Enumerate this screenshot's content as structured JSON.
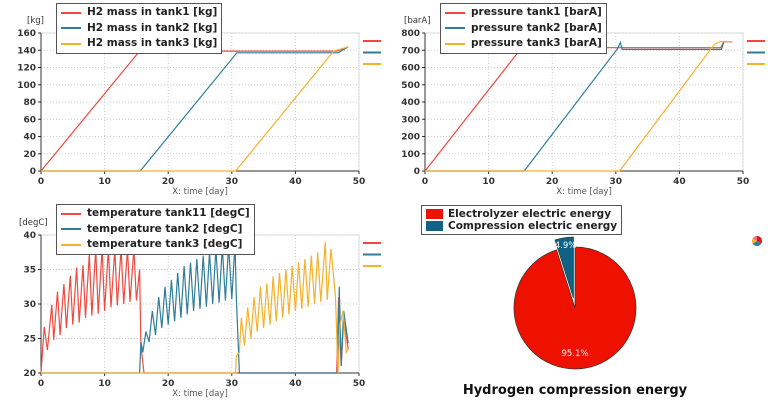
{
  "colors": {
    "tank1": "#ee4a40",
    "tank2": "#2f7d9a",
    "tank3": "#f7b12a",
    "pie_electrolyzer": "#ee1100",
    "pie_compression": "#0f6283"
  },
  "chart_data": [
    {
      "type": "line",
      "xlabel": "X: time [day]",
      "ylabel": "[kg]",
      "xlim": [
        0,
        50
      ],
      "ylim": [
        0,
        160
      ],
      "xticks": [
        0,
        10,
        20,
        30,
        40,
        50
      ],
      "yticks": [
        0,
        20,
        40,
        60,
        80,
        100,
        120,
        140,
        160
      ],
      "grid": true,
      "legend": "top-left",
      "series": [
        {
          "name": "H2 mass in tank1 [kg]",
          "color": "tank1",
          "points": [
            [
              0,
              0
            ],
            [
              15.5,
              139
            ],
            [
              46.5,
              139
            ],
            [
              48.3,
              144
            ]
          ]
        },
        {
          "name": "H2 mass in tank2 [kg]",
          "color": "tank2",
          "points": [
            [
              0,
              0
            ],
            [
              15.6,
              0
            ],
            [
              30.8,
              137
            ],
            [
              46.7,
              137
            ],
            [
              48.3,
              144
            ]
          ]
        },
        {
          "name": "H2 mass in tank3 [kg]",
          "color": "tank3",
          "points": [
            [
              0,
              0
            ],
            [
              30.6,
              0
            ],
            [
              46,
              139
            ],
            [
              48.3,
              144
            ]
          ]
        }
      ]
    },
    {
      "type": "line",
      "xlabel": "X: time [day]",
      "ylabel": "[barA]",
      "xlim": [
        0,
        50
      ],
      "ylim": [
        0,
        800
      ],
      "xticks": [
        0,
        10,
        20,
        30,
        40,
        50
      ],
      "yticks": [
        0,
        100,
        200,
        300,
        400,
        500,
        600,
        700,
        800
      ],
      "grid": true,
      "legend": "top-left",
      "series": [
        {
          "name": "pressure tank1 [barA]",
          "color": "tank1",
          "points": [
            [
              0,
              0
            ],
            [
              15.2,
              715
            ],
            [
              46.5,
              715
            ],
            [
              47,
              750
            ],
            [
              48.3,
              750
            ]
          ]
        },
        {
          "name": "pressure tank2 [barA]",
          "color": "tank2",
          "points": [
            [
              0,
              0
            ],
            [
              15.6,
              0
            ],
            [
              30.3,
              710
            ],
            [
              30.7,
              745
            ],
            [
              31,
              705
            ],
            [
              46.6,
              705
            ],
            [
              47,
              750
            ],
            [
              48.3,
              750
            ]
          ]
        },
        {
          "name": "pressure tank3 [barA]",
          "color": "tank3",
          "points": [
            [
              0,
              0
            ],
            [
              30.6,
              0
            ],
            [
              45.5,
              735
            ],
            [
              46.5,
              750
            ],
            [
              48.3,
              750
            ]
          ]
        }
      ]
    },
    {
      "type": "line",
      "xlabel": "X: time [day]",
      "ylabel": "[degC]",
      "xlim": [
        0,
        50
      ],
      "ylim": [
        20,
        40
      ],
      "xticks": [
        0,
        10,
        20,
        30,
        40,
        50
      ],
      "yticks": [
        20,
        25,
        30,
        35,
        40
      ],
      "grid": true,
      "legend": "top-left",
      "series": [
        {
          "name": "temperature tank11 [degC]",
          "color": "tank1",
          "points": [
            [
              0,
              20
            ],
            [
              0.5,
              26.7
            ],
            [
              1,
              23.3
            ],
            [
              1.7,
              29.9
            ],
            [
              2,
              24.8
            ],
            [
              2.6,
              31.8
            ],
            [
              3,
              25.5
            ],
            [
              3.6,
              32.9
            ],
            [
              4,
              26.5
            ],
            [
              4.6,
              34.1
            ],
            [
              5,
              27
            ],
            [
              5.6,
              35.3
            ],
            [
              6,
              27.3
            ],
            [
              6.6,
              35.6
            ],
            [
              7,
              28
            ],
            [
              7.6,
              37.2
            ],
            [
              8,
              28.3
            ],
            [
              8.6,
              38
            ],
            [
              9,
              28.6
            ],
            [
              9.6,
              38
            ],
            [
              10,
              29
            ],
            [
              10.6,
              38
            ],
            [
              11,
              29.5
            ],
            [
              11.6,
              38
            ],
            [
              12,
              29.8
            ],
            [
              12.6,
              38
            ],
            [
              13,
              30
            ],
            [
              13.6,
              38
            ],
            [
              14,
              30.3
            ],
            [
              14.6,
              38
            ],
            [
              15,
              30.5
            ],
            [
              15.5,
              35
            ],
            [
              15.7,
              24
            ],
            [
              16.2,
              20
            ],
            [
              46.5,
              20
            ],
            [
              46.8,
              31
            ],
            [
              47.2,
              21
            ],
            [
              47.6,
              28
            ],
            [
              48.3,
              23.5
            ]
          ]
        },
        {
          "name": "temperature tank2 [degC]",
          "color": "tank2",
          "points": [
            [
              0,
              20
            ],
            [
              15.5,
              20
            ],
            [
              15.7,
              24.5
            ],
            [
              16,
              23
            ],
            [
              16.5,
              26
            ],
            [
              17,
              24.5
            ],
            [
              17.5,
              29
            ],
            [
              18,
              25.5
            ],
            [
              18.5,
              31
            ],
            [
              19,
              26.5
            ],
            [
              19.5,
              32.5
            ],
            [
              20,
              27
            ],
            [
              20.5,
              33.5
            ],
            [
              21,
              27.5
            ],
            [
              21.5,
              34.5
            ],
            [
              22,
              28
            ],
            [
              22.5,
              35.5
            ],
            [
              23,
              28.5
            ],
            [
              23.5,
              36
            ],
            [
              24,
              29
            ],
            [
              24.5,
              36.5
            ],
            [
              25,
              29.3
            ],
            [
              25.5,
              37
            ],
            [
              26,
              29.6
            ],
            [
              26.5,
              37.5
            ],
            [
              27,
              30
            ],
            [
              27.5,
              38
            ],
            [
              28,
              30.2
            ],
            [
              28.5,
              38.3
            ],
            [
              29,
              30.5
            ],
            [
              29.5,
              38.5
            ],
            [
              30,
              30.7
            ],
            [
              30.5,
              38.8
            ],
            [
              30.7,
              31
            ],
            [
              31.2,
              20
            ],
            [
              46.6,
              20
            ],
            [
              46.9,
              32.5
            ],
            [
              47.2,
              21
            ],
            [
              47.6,
              29
            ],
            [
              48.3,
              24.3
            ]
          ]
        },
        {
          "name": "temperature tank3 [degC]",
          "color": "tank3",
          "points": [
            [
              0,
              20
            ],
            [
              30.6,
              20
            ],
            [
              30.7,
              22.5
            ],
            [
              31.2,
              23
            ],
            [
              31.5,
              28
            ],
            [
              32,
              24
            ],
            [
              32.5,
              29.5
            ],
            [
              33,
              25
            ],
            [
              33.5,
              31
            ],
            [
              34,
              26
            ],
            [
              34.5,
              32.5
            ],
            [
              35,
              26.5
            ],
            [
              35.5,
              33
            ],
            [
              36,
              27
            ],
            [
              36.5,
              34
            ],
            [
              37,
              27.5
            ],
            [
              37.5,
              34.5
            ],
            [
              38,
              28
            ],
            [
              38.5,
              35
            ],
            [
              39,
              28.5
            ],
            [
              39.5,
              35.5
            ],
            [
              40,
              29
            ],
            [
              40.5,
              36
            ],
            [
              41,
              29.3
            ],
            [
              41.5,
              36.5
            ],
            [
              42,
              29.6
            ],
            [
              42.5,
              37
            ],
            [
              43,
              30
            ],
            [
              43.5,
              37.5
            ],
            [
              44,
              30.3
            ],
            [
              44.7,
              39
            ],
            [
              45,
              30.6
            ],
            [
              45.6,
              38
            ],
            [
              46.3,
              31
            ],
            [
              46.7,
              20
            ],
            [
              47,
              27
            ],
            [
              47.5,
              29
            ],
            [
              48,
              23
            ],
            [
              48.3,
              23.5
            ]
          ]
        }
      ]
    },
    {
      "type": "pie",
      "title": "Hydrogen compression energy",
      "legend": "top-left",
      "slices": [
        {
          "name": "Electrolyzer electric energy",
          "value": 95.1,
          "label": "95.1%",
          "color": "pie_electrolyzer"
        },
        {
          "name": "Compression electric energy",
          "value": 4.9,
          "label": "4.9%",
          "color": "pie_compression"
        }
      ]
    }
  ]
}
